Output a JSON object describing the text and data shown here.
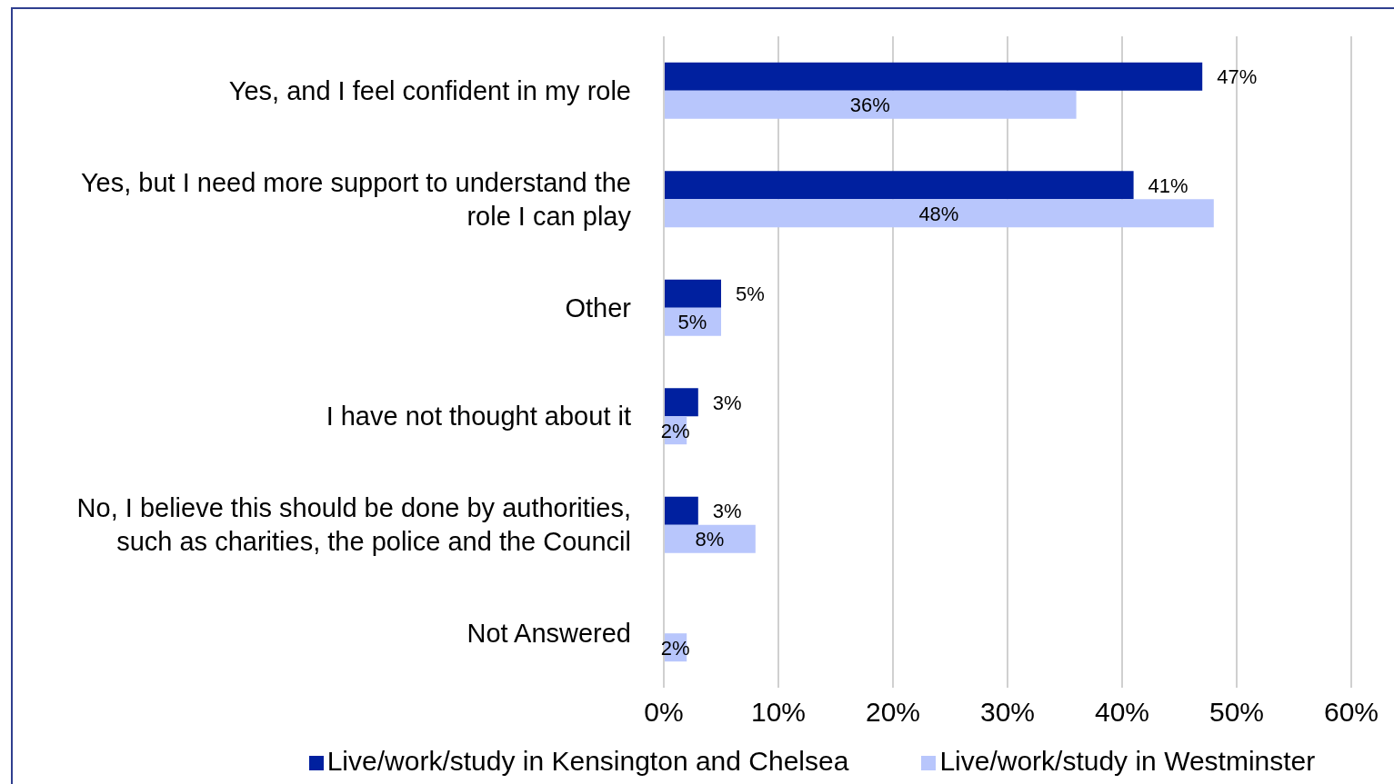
{
  "chart_data": {
    "type": "bar",
    "orientation": "horizontal",
    "categories": [
      "Yes, and I feel confident in my role",
      "Yes, but I need more support to understand the role I can play",
      "Other",
      "I have not thought about it",
      "No, I believe this should be done by authorities, such as charities, the police and the Council",
      "Not Answered"
    ],
    "series": [
      {
        "name": "Live/work/study in Kensington and Chelsea",
        "color": "#00209f",
        "values": [
          47,
          41,
          5,
          3,
          3,
          null
        ],
        "value_labels": [
          "47%",
          "41%",
          "5%",
          "3%",
          "3%",
          null
        ]
      },
      {
        "name": "Live/work/study in Westminster",
        "color": "#b8c6fc",
        "values": [
          36,
          48,
          5,
          2,
          8,
          2
        ],
        "value_labels": [
          "36%",
          "48%",
          "5%",
          "2%",
          "8%",
          "2%"
        ]
      }
    ],
    "xlim": [
      0,
      60
    ],
    "xticks": [
      {
        "value": 0,
        "label": "0%"
      },
      {
        "value": 10,
        "label": "10%"
      },
      {
        "value": 20,
        "label": "20%"
      },
      {
        "value": 30,
        "label": "30%"
      },
      {
        "value": 40,
        "label": "40%"
      },
      {
        "value": 50,
        "label": "50%"
      },
      {
        "value": 60,
        "label": "60%"
      }
    ],
    "grid": "x",
    "legend": "bottom"
  }
}
